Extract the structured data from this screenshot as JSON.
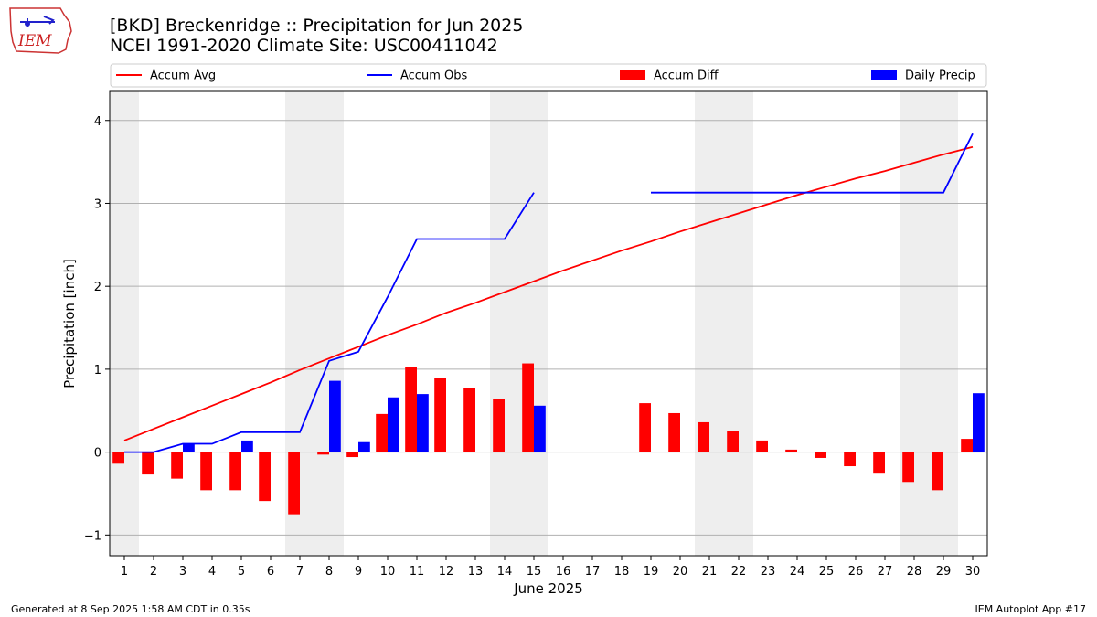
{
  "title_line1": "[BKD] Breckenridge :: Precipitation for Jun 2025",
  "title_line2": "NCEI 1991-2020 Climate Site: USC00411042",
  "logo_text": "IEM",
  "footer_left": "Generated at 8 Sep 2025 1:58 AM CDT in 0.35s",
  "footer_right": "IEM Autoplot App #17",
  "colors": {
    "avg": "#ff0000",
    "obs": "#0000ff",
    "diff": "#ff0000",
    "daily": "#0000ff",
    "weekend": "#eeeeee",
    "grid": "#b0b0b0"
  },
  "chart_data": {
    "type": "bar",
    "xlabel": "June 2025",
    "ylabel": "Precipitation [inch]",
    "x": [
      1,
      2,
      3,
      4,
      5,
      6,
      7,
      8,
      9,
      10,
      11,
      12,
      13,
      14,
      15,
      16,
      17,
      18,
      19,
      20,
      21,
      22,
      23,
      24,
      25,
      26,
      27,
      28,
      29,
      30
    ],
    "xlim": [
      0.5,
      30.5
    ],
    "ylim": [
      -1.25,
      4.35
    ],
    "yticks": [
      -1,
      0,
      1,
      2,
      3,
      4
    ],
    "ytick_labels": [
      "−1",
      "0",
      "1",
      "2",
      "3",
      "4"
    ],
    "grid": "horizontal",
    "legend_position": "top",
    "weekend_days": [
      1,
      7,
      8,
      14,
      15,
      21,
      22,
      28,
      29
    ],
    "series": [
      {
        "name": "Accum Avg",
        "kind": "line",
        "values": [
          0.14,
          0.28,
          0.42,
          0.56,
          0.7,
          0.84,
          0.99,
          1.13,
          1.27,
          1.41,
          1.54,
          1.68,
          1.8,
          1.93,
          2.06,
          2.19,
          2.31,
          2.43,
          2.54,
          2.66,
          2.77,
          2.88,
          2.99,
          3.1,
          3.2,
          3.3,
          3.39,
          3.49,
          3.59,
          3.68
        ]
      },
      {
        "name": "Accum Obs",
        "kind": "line",
        "values": [
          0.0,
          0.0,
          0.1,
          0.1,
          0.24,
          0.24,
          0.24,
          1.1,
          1.21,
          1.87,
          2.57,
          2.57,
          2.57,
          2.57,
          3.13,
          null,
          null,
          null,
          3.13,
          3.13,
          3.13,
          3.13,
          3.13,
          3.13,
          3.13,
          3.13,
          3.13,
          3.13,
          3.13,
          3.84
        ]
      },
      {
        "name": "Accum Diff",
        "kind": "bar",
        "values": [
          -0.14,
          -0.27,
          -0.32,
          -0.46,
          -0.46,
          -0.59,
          -0.75,
          -0.03,
          -0.06,
          0.46,
          1.03,
          0.89,
          0.77,
          0.64,
          1.07,
          null,
          null,
          null,
          0.59,
          0.47,
          0.36,
          0.25,
          0.14,
          0.03,
          -0.07,
          -0.17,
          -0.26,
          -0.36,
          -0.46,
          0.16
        ]
      },
      {
        "name": "Daily Precip",
        "kind": "bar",
        "values": [
          0.0,
          0.0,
          0.1,
          0.0,
          0.14,
          0.0,
          0.0,
          0.86,
          0.12,
          0.66,
          0.7,
          0.0,
          0.0,
          0.0,
          0.56,
          null,
          null,
          null,
          0.0,
          0.0,
          0.0,
          0.0,
          0.0,
          0.0,
          0.0,
          0.0,
          0.0,
          0.0,
          0.0,
          0.71
        ]
      }
    ]
  }
}
